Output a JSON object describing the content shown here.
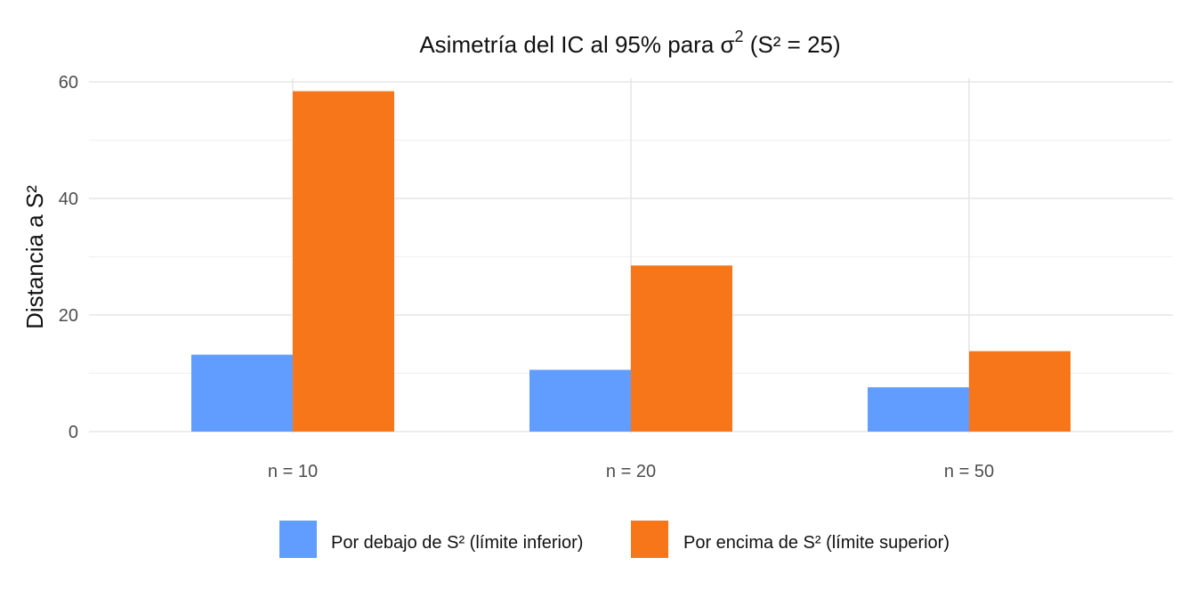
{
  "chart_data": {
    "type": "bar",
    "title_main": "Asimetría del IC al 95% para σ",
    "title_sup": "2",
    "title_rest": " (S² = 25)",
    "ylabel": "Distancia a S²",
    "xlabel": "",
    "categories": [
      "n = 10",
      "n = 20",
      "n = 50"
    ],
    "series": [
      {
        "name": "Por debajo de S² (límite inferior)",
        "color": "#619CFF",
        "values": [
          13.2,
          10.6,
          7.6
        ]
      },
      {
        "name": "Por encima de S² (límite superior)",
        "color": "#F8761A",
        "values": [
          58.4,
          28.5,
          13.8
        ]
      }
    ],
    "ylim": [
      0,
      60
    ],
    "yticks": [
      "0",
      "20",
      "40",
      "60"
    ],
    "grid": true,
    "legend_position": "bottom"
  }
}
